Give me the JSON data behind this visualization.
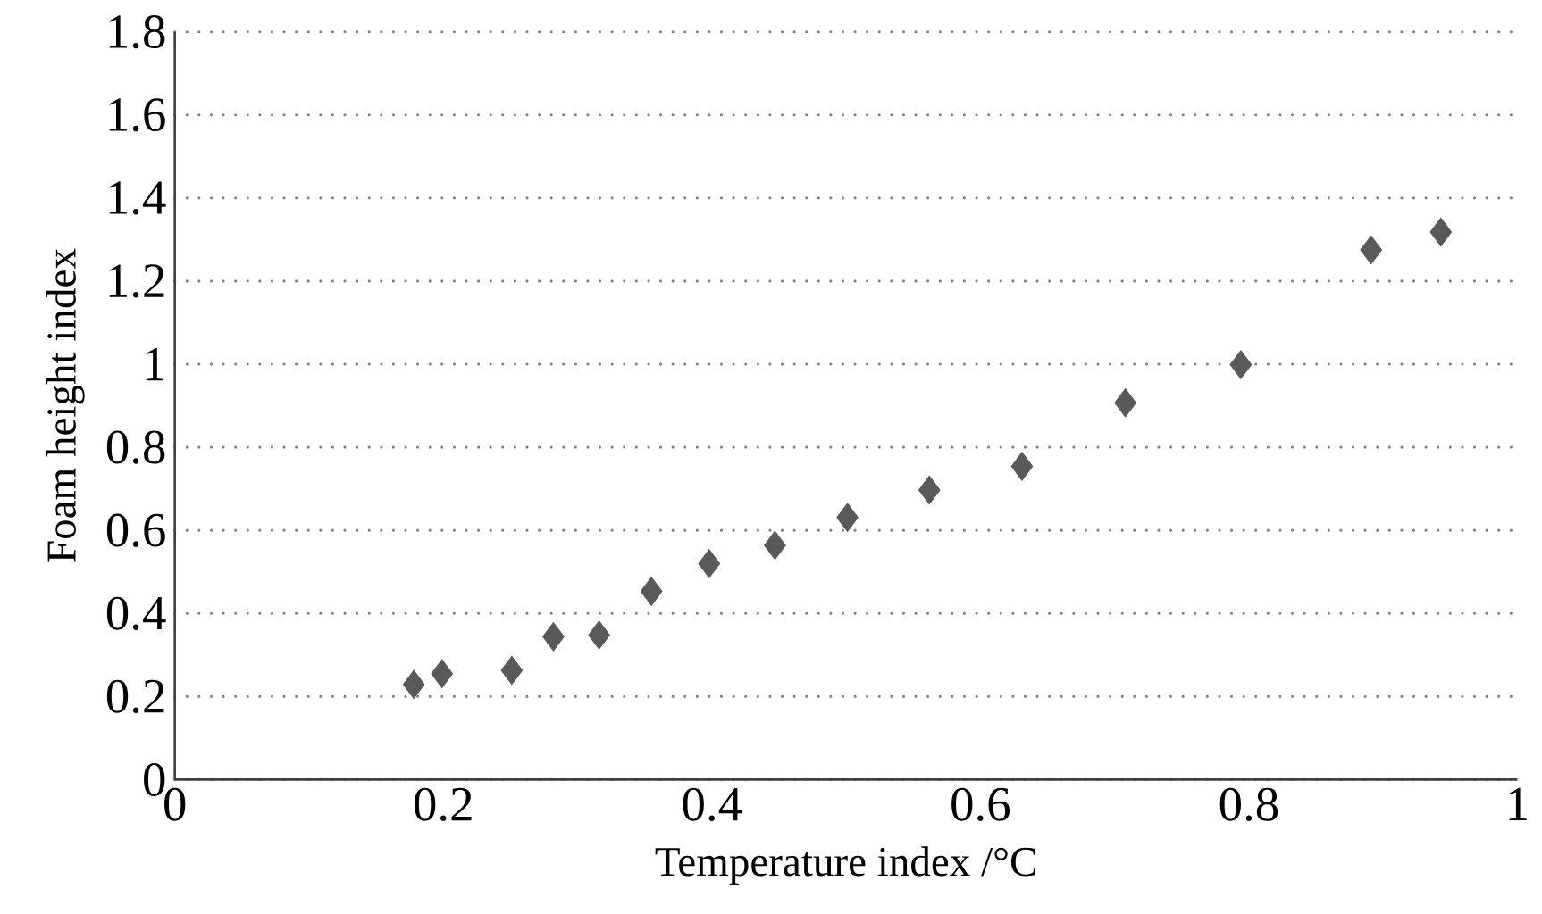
{
  "chart_data": {
    "type": "scatter",
    "xlabel": "Temperature index /°C",
    "ylabel": "Foam height index",
    "x": [
      0.178,
      0.199,
      0.251,
      0.282,
      0.316,
      0.355,
      0.398,
      0.447,
      0.501,
      0.562,
      0.631,
      0.708,
      0.794,
      0.891,
      0.943
    ],
    "values": [
      0.229,
      0.255,
      0.263,
      0.344,
      0.348,
      0.453,
      0.52,
      0.564,
      0.631,
      0.697,
      0.754,
      0.907,
      0.999,
      1.275,
      1.318
    ],
    "color": "#595959",
    "marker": "diamond",
    "xlim": [
      0,
      1
    ],
    "ylim": [
      0,
      1.8
    ],
    "xticks": [
      0,
      0.2,
      0.4,
      0.6,
      0.8,
      1
    ],
    "yticks": [
      0,
      0.2,
      0.4,
      0.6,
      0.8,
      1,
      1.2,
      1.4,
      1.6,
      1.8
    ],
    "grid": "y"
  }
}
